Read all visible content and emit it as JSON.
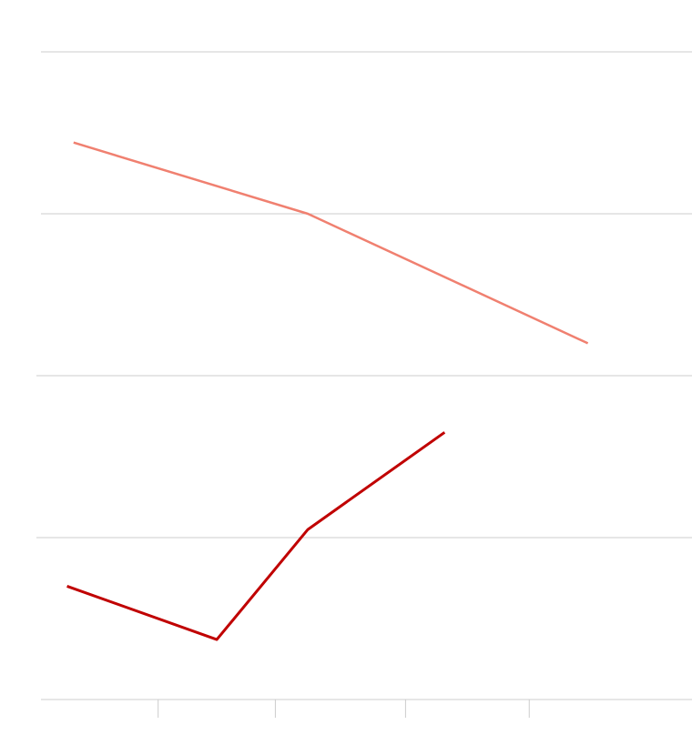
{
  "chart_data": {
    "type": "line",
    "title": "",
    "xlabel": "",
    "ylabel": "",
    "grid": true,
    "legend": "none",
    "xlim": [
      0,
      10
    ],
    "ylim": [
      0,
      4
    ],
    "gridlines_y": [
      0,
      1,
      2,
      3,
      4
    ],
    "x_ticks": [
      1.8,
      3.6,
      5.6,
      7.5
    ],
    "series": [
      {
        "color": "#f08070",
        "x": [
          0.5,
          4.1,
          8.4
        ],
        "y": [
          3.44,
          3.0,
          2.2
        ]
      },
      {
        "color": "#c00000",
        "x": [
          0.4,
          2.7,
          4.1,
          6.2
        ],
        "y": [
          0.7,
          0.37,
          1.05,
          1.65
        ]
      }
    ]
  }
}
